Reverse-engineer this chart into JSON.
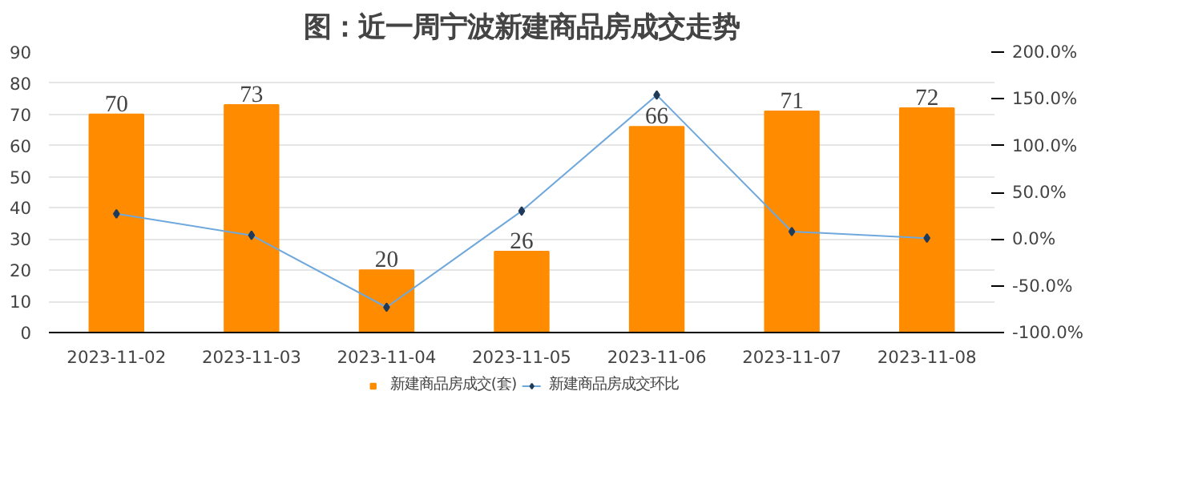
{
  "chart_data": {
    "type": "bar",
    "title": "图：近一周宁波新建商品房成交走势",
    "categories": [
      "2023-11-02",
      "2023-11-03",
      "2023-11-04",
      "2023-11-05",
      "2023-11-06",
      "2023-11-07",
      "2023-11-08"
    ],
    "series": [
      {
        "name": "新建商品房成交(套)",
        "color": "#ff8c00",
        "values": [
          70,
          73,
          20,
          26,
          66,
          71,
          72
        ],
        "data_labels": true
      },
      {
        "name": "新建商品房成交环比",
        "type": "line",
        "axis": "y2",
        "color": "#6fa8dc",
        "marker": "diamond",
        "values": [
          27,
          4,
          -73,
          30,
          154,
          8,
          1
        ]
      }
    ],
    "ylim": [
      0,
      90
    ],
    "yticks": [
      0,
      10,
      20,
      30,
      40,
      50,
      60,
      70,
      80,
      90
    ],
    "y2lim": [
      -100,
      200
    ],
    "y2ticks": [
      {
        "value": -100,
        "label": "-100.0%"
      },
      {
        "value": -50,
        "label": "-50.0%"
      },
      {
        "value": 0,
        "label": "0.0%"
      },
      {
        "value": 50,
        "label": "50.0%"
      },
      {
        "value": 100,
        "label": "100.0%"
      },
      {
        "value": 150,
        "label": "150.0%"
      },
      {
        "value": 200,
        "label": "200.0%"
      }
    ],
    "grid": "y",
    "legend": "bottom"
  }
}
